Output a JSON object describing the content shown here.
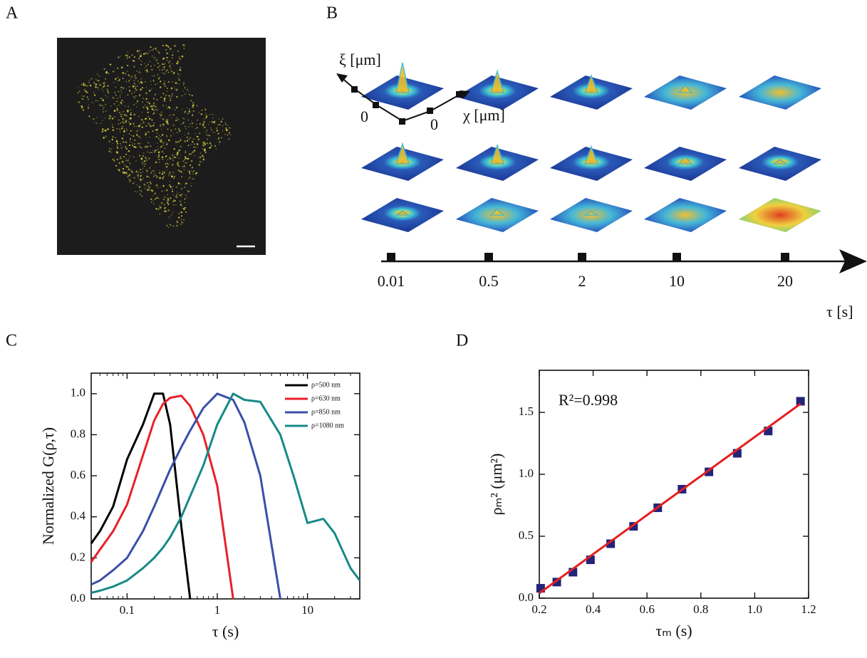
{
  "panels": {
    "a": {
      "letter": "A"
    },
    "b": {
      "letter": "B",
      "y_axis": "ξ [μm]",
      "x_axis": "χ [μm]",
      "origin_y": "0",
      "origin_x": "0",
      "time_ticks": [
        "0.01",
        "0.5",
        "2",
        "10",
        "20"
      ],
      "time_label": "τ [s]"
    }
  },
  "chart_data": [
    {
      "type": "line",
      "panel": "C",
      "xscale": "log",
      "xlabel": "τ (s)",
      "ylabel": "Normalized G(ρ,τ)",
      "xlim": [
        0.04,
        38
      ],
      "ylim": [
        0,
        1.1
      ],
      "xticks": [
        0.1,
        1,
        10
      ],
      "yticks": [
        {
          "value": 0,
          "label": "0.0"
        },
        0.2,
        0.4,
        0.6,
        0.8,
        {
          "value": 1,
          "label": "1.0"
        }
      ],
      "legend": "upper right",
      "x": [
        0.04,
        0.05,
        0.07,
        0.1,
        0.15,
        0.2,
        0.25,
        0.3,
        0.4,
        0.5,
        0.7,
        1,
        1.5,
        2,
        3,
        5,
        7,
        10,
        15,
        20,
        30,
        38
      ],
      "series": [
        {
          "name": "ρ=500 nm",
          "color": "#000000",
          "values": [
            0.27,
            0.33,
            0.45,
            0.68,
            0.85,
            1.0,
            1.0,
            0.85,
            0.35,
            0.0,
            null,
            null,
            null,
            null,
            null,
            null,
            null,
            null,
            null,
            null,
            null,
            null
          ]
        },
        {
          "name": "ρ=630 nm",
          "color": "#e8202a",
          "values": [
            0.18,
            0.24,
            0.33,
            0.46,
            0.7,
            0.87,
            0.95,
            0.98,
            0.99,
            0.94,
            0.8,
            0.55,
            0.0,
            null,
            null,
            null,
            null,
            null,
            null,
            null,
            null,
            null
          ]
        },
        {
          "name": "ρ=850 nm",
          "color": "#3a4fa8",
          "values": [
            0.07,
            0.09,
            0.14,
            0.2,
            0.33,
            0.45,
            0.55,
            0.63,
            0.74,
            0.82,
            0.93,
            1.0,
            0.97,
            0.86,
            0.6,
            0.0,
            null,
            null,
            null,
            null,
            null,
            null
          ]
        },
        {
          "name": "ρ=1080 nm",
          "color": "#168a86",
          "values": [
            0.03,
            0.04,
            0.06,
            0.09,
            0.15,
            0.2,
            0.25,
            0.3,
            0.4,
            0.5,
            0.65,
            0.85,
            1.0,
            0.97,
            0.96,
            0.8,
            0.6,
            0.37,
            0.39,
            0.32,
            0.15,
            0.09
          ]
        }
      ]
    },
    {
      "type": "scatter",
      "panel": "D",
      "xlabel": "τₘ (s)",
      "ylabel": "ρₘ² (μm²)",
      "annotation": "R²=0.998",
      "xlim": [
        0.2,
        1.2
      ],
      "ylim": [
        0,
        1.84
      ],
      "xticks": [
        0.2,
        0.4,
        0.6,
        0.8,
        {
          "value": 1,
          "label": "1.0"
        },
        1.2
      ],
      "yticks": [
        {
          "value": 0,
          "label": "0.0"
        },
        0.5,
        {
          "value": 1,
          "label": "1.0"
        },
        1.5
      ],
      "series": [
        {
          "color": "#23237a",
          "marker": "square",
          "x": [
            0.205,
            0.265,
            0.325,
            0.39,
            0.465,
            0.55,
            0.64,
            0.73,
            0.83,
            0.935,
            1.05,
            1.17
          ],
          "values": [
            0.08,
            0.13,
            0.21,
            0.31,
            0.44,
            0.58,
            0.73,
            0.88,
            1.02,
            1.17,
            1.35,
            1.59
          ]
        },
        {
          "color": "#e32020",
          "marker": "line",
          "x": [
            0.2,
            1.17
          ],
          "values": [
            0.04,
            1.57
          ]
        }
      ]
    }
  ]
}
